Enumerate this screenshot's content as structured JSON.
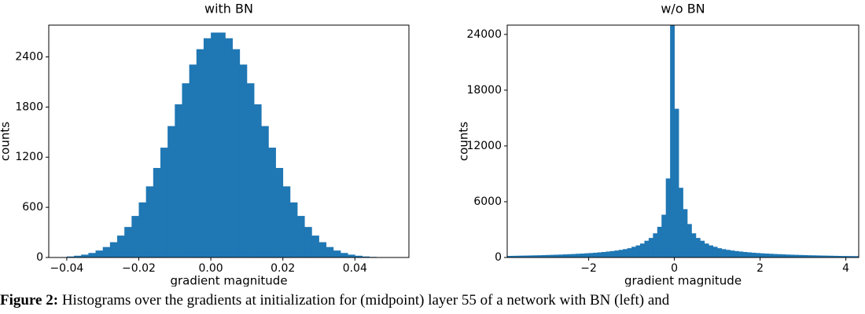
{
  "chart_data": [
    {
      "type": "histogram",
      "title": "with BN",
      "xlabel": "gradient magnitude",
      "ylabel": "counts",
      "color": "#1f77b4",
      "bins": [
        -0.04,
        -0.038,
        -0.036,
        -0.034,
        -0.032,
        -0.03,
        -0.028,
        -0.026,
        -0.024,
        -0.022,
        -0.02,
        -0.018,
        -0.016,
        -0.014,
        -0.012,
        -0.01,
        -0.008,
        -0.006,
        -0.004,
        -0.002,
        0,
        0.002,
        0.004,
        0.006,
        0.008,
        0.01,
        0.012,
        0.014,
        0.016,
        0.018,
        0.02,
        0.022,
        0.024,
        0.026,
        0.028,
        0.03,
        0.032,
        0.034,
        0.036,
        0.038,
        0.04,
        0.042,
        0.044,
        0.046,
        0.048,
        0.05,
        0.052
      ],
      "counts": [
        12,
        21,
        34,
        54,
        83,
        125,
        183,
        262,
        365,
        497,
        659,
        851,
        1071,
        1314,
        1572,
        1833,
        2084,
        2308,
        2492,
        2623,
        2691,
        2691,
        2623,
        2492,
        2308,
        2084,
        1833,
        1572,
        1314,
        1071,
        851,
        659,
        497,
        365,
        262,
        183,
        125,
        83,
        54,
        34,
        21,
        12,
        7,
        4,
        2,
        1
      ],
      "xlim": [
        -0.045,
        0.055
      ],
      "ylim": [
        0,
        2780
      ],
      "xticks": [
        {
          "value": -0.04,
          "label": "−0.04"
        },
        {
          "value": -0.02,
          "label": "−0.02"
        },
        {
          "value": 0,
          "label": "0.00"
        },
        0.02,
        0.04
      ],
      "yticks": [
        0,
        600,
        1200,
        1800,
        2400
      ]
    },
    {
      "type": "histogram",
      "title": "w/o BN",
      "xlabel": "gradient magnitude",
      "ylabel": "counts",
      "color": "#1f77b4",
      "bins": [
        -3.9,
        -3.8,
        -3.7,
        -3.6,
        -3.5,
        -3.4,
        -3.3,
        -3.2,
        -3.1,
        -3,
        -2.9,
        -2.8,
        -2.7,
        -2.6,
        -2.5,
        -2.4,
        -2.3,
        -2.2,
        -2.1,
        -2,
        -1.9,
        -1.8,
        -1.7,
        -1.6,
        -1.5,
        -1.4,
        -1.3,
        -1.2,
        -1.1,
        -1,
        -0.9,
        -0.8,
        -0.7,
        -0.6,
        -0.5,
        -0.4,
        -0.3,
        -0.2,
        -0.1,
        0,
        0.1,
        0.2,
        0.3,
        0.4,
        0.5,
        0.6,
        0.7,
        0.8,
        0.9,
        1,
        1.1,
        1.2,
        1.3,
        1.4,
        1.5,
        1.6,
        1.7,
        1.8,
        1.9,
        2,
        2.1,
        2.2,
        2.3,
        2.4,
        2.5,
        2.6,
        2.7,
        2.8,
        2.9,
        3,
        3.1,
        3.2,
        3.3,
        3.4,
        3.5,
        3.6,
        3.7,
        3.8,
        3.9,
        4,
        4.1,
        4.2,
        4.3
      ],
      "counts": [
        170,
        180,
        190,
        200,
        210,
        220,
        230,
        240,
        255,
        270,
        285,
        300,
        315,
        335,
        355,
        375,
        400,
        420,
        450,
        480,
        510,
        550,
        590,
        640,
        690,
        750,
        820,
        900,
        1000,
        1150,
        1300,
        1500,
        1800,
        2100,
        2600,
        3300,
        4600,
        8500,
        25000,
        16000,
        7500,
        5200,
        3600,
        2600,
        2100,
        1800,
        1500,
        1300,
        1150,
        1000,
        900,
        820,
        750,
        690,
        640,
        590,
        550,
        510,
        480,
        450,
        420,
        400,
        375,
        355,
        335,
        315,
        300,
        285,
        270,
        255,
        240,
        230,
        220,
        210,
        200,
        190,
        180,
        170,
        160,
        155,
        150,
        145
      ],
      "xlim": [
        -3.9,
        4.3
      ],
      "ylim": [
        0,
        25000
      ],
      "xticks": [
        {
          "value": -2,
          "label": "−2"
        },
        0,
        2,
        4
      ],
      "yticks": [
        0,
        6000,
        12000,
        18000,
        24000
      ]
    }
  ],
  "caption": {
    "label": "Figure 2:",
    "text": "Histograms over the gradients at initialization for (midpoint) layer 55 of a network with BN (left) and"
  }
}
